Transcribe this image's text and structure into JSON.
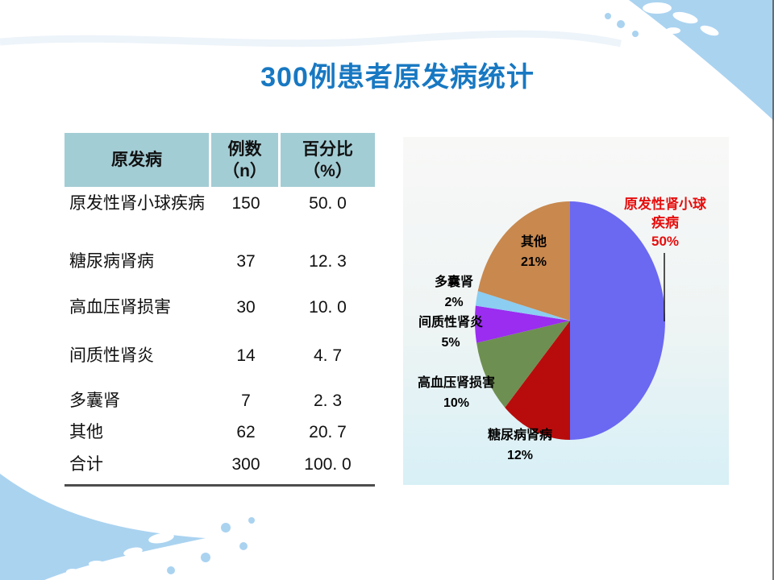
{
  "slide": {
    "title": "300例患者原发病统计"
  },
  "theme": {
    "title_color": "#1878c2",
    "header_bg": "#a3cdd5",
    "swoosh_blue": "#aad3f0",
    "chart_bg_top": "#f8f8f7",
    "chart_bg_bottom": "#d7f0f6"
  },
  "table": {
    "header": [
      "原发病",
      "例数\n（n）",
      "百分比\n（%）"
    ],
    "rows": [
      [
        "原发性肾小球疾病",
        "150",
        "50. 0"
      ],
      [
        "糖尿病肾病",
        "37",
        "12. 3"
      ],
      [
        "高血压肾损害",
        "30",
        "10. 0"
      ],
      [
        "间质性肾炎",
        "14",
        "4. 7"
      ],
      [
        "多囊肾",
        "7",
        "2. 3"
      ],
      [
        "其他",
        "62",
        "20. 7"
      ],
      [
        "合计",
        "300",
        "100. 0"
      ]
    ]
  },
  "chart_data": {
    "type": "pie",
    "title": "",
    "start_angle_deg": 0,
    "direction": "clockwise",
    "legend": "none",
    "slices": [
      {
        "name": "原发性肾小球疾病",
        "value": 50,
        "pct_label": "50%",
        "color": "#6b68f2",
        "label_color": "#e60d0d"
      },
      {
        "name": "糖尿病肾病",
        "value": 12,
        "pct_label": "12%",
        "color": "#b80c0c",
        "label_color": "#000000"
      },
      {
        "name": "高血压肾损害",
        "value": 10,
        "pct_label": "10%",
        "color": "#6e8f52",
        "label_color": "#000000"
      },
      {
        "name": "间质性肾炎",
        "value": 5,
        "pct_label": "5%",
        "color": "#9a2df0",
        "label_color": "#000000"
      },
      {
        "name": "多囊肾",
        "value": 2,
        "pct_label": "2%",
        "color": "#8ccdf2",
        "label_color": "#000000"
      },
      {
        "name": "其他",
        "value": 21,
        "pct_label": "21%",
        "color": "#c8884e",
        "label_color": "#000000"
      }
    ]
  }
}
